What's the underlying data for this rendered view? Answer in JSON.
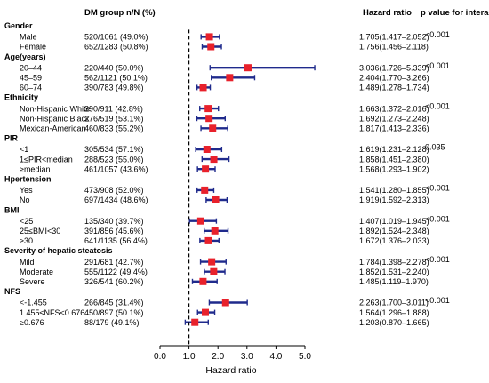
{
  "chart_data": {
    "type": "forest",
    "headers": {
      "group": "DM group n/N (%)",
      "hr": "Hazard ratio",
      "p": "p value for interaction"
    },
    "xlabel": "Hazard ratio",
    "xlim": [
      0.0,
      5.0
    ],
    "xticks": [
      "0.0",
      "1.0",
      "2.0",
      "3.0",
      "4.0",
      "5.0"
    ],
    "reference_line": 1.0,
    "colors": {
      "marker": "#e8212b",
      "ci": "#1f2a8c"
    },
    "groups": [
      {
        "name": "Gender",
        "p": "<0.001",
        "rows": [
          {
            "label": "Male",
            "n": "520/1061 (49.0%)",
            "hr": 1.705,
            "lo": 1.417,
            "hi": 2.052,
            "hr_text": "1.705(1.417–2.052)"
          },
          {
            "label": "Female",
            "n": "652/1283 (50.8%)",
            "hr": 1.756,
            "lo": 1.456,
            "hi": 2.118,
            "hr_text": "1.756(1.456–2.118)"
          }
        ]
      },
      {
        "name": "Age(years)",
        "p": "<0.001",
        "rows": [
          {
            "label": "20–44",
            "n": "220/440  (50.0%)",
            "hr": 3.036,
            "lo": 1.726,
            "hi": 5.339,
            "hr_text": "3.036(1.726–5.339)"
          },
          {
            "label": "45–59",
            "n": "562/1121 (50.1%)",
            "hr": 2.404,
            "lo": 1.77,
            "hi": 3.266,
            "hr_text": "2.404(1.770–3.266)"
          },
          {
            "label": "60–74",
            "n": "390/783  (49.8%)",
            "hr": 1.489,
            "lo": 1.278,
            "hi": 1.734,
            "hr_text": "1.489(1.278–1.734)"
          }
        ]
      },
      {
        "name": "Ethnicity",
        "p": "<0.001",
        "rows": [
          {
            "label": "Non-Hispanic White",
            "n": "390/911 (42.8%)",
            "hr": 1.663,
            "lo": 1.372,
            "hi": 2.016,
            "hr_text": "1.663(1.372–2.016)"
          },
          {
            "label": "Non-Hispanic Black",
            "n": "276/519 (53.1%)",
            "hr": 1.692,
            "lo": 1.273,
            "hi": 2.248,
            "hr_text": "1.692(1.273–2.248)"
          },
          {
            "label": "Mexican-American",
            "n": "460/833 (55.2%)",
            "hr": 1.817,
            "lo": 1.413,
            "hi": 2.336,
            "hr_text": "1.817(1.413–2.336)"
          }
        ]
      },
      {
        "name": "PIR",
        "p": "0.035",
        "rows": [
          {
            "label": "<1",
            "n": "305/534  (57.1%)",
            "hr": 1.619,
            "lo": 1.231,
            "hi": 2.128,
            "hr_text": "1.619(1.231–2.128)"
          },
          {
            "label": "1≤PIR<median",
            "n": "288/523  (55.0%)",
            "hr": 1.858,
            "lo": 1.451,
            "hi": 2.38,
            "hr_text": "1.858(1.451–2.380)"
          },
          {
            "label": "≥median",
            "n": "461/1057 (43.6%)",
            "hr": 1.568,
            "lo": 1.293,
            "hi": 1.902,
            "hr_text": "1.568(1.293–1.902)"
          }
        ]
      },
      {
        "name": "Hpertension",
        "p": "<0.001",
        "rows": [
          {
            "label": "Yes",
            "n": "473/908  (52.0%)",
            "hr": 1.541,
            "lo": 1.28,
            "hi": 1.855,
            "hr_text": "1.541(1.280–1.855)"
          },
          {
            "label": "No",
            "n": "697/1434 (48.6%)",
            "hr": 1.919,
            "lo": 1.592,
            "hi": 2.313,
            "hr_text": "1.919(1.592–2.313)"
          }
        ]
      },
      {
        "name": "BMI",
        "p": "<0.001",
        "rows": [
          {
            "label": "<25",
            "n": "135/340  (39.7%)",
            "hr": 1.407,
            "lo": 1.019,
            "hi": 1.945,
            "hr_text": "1.407(1.019–1.945)"
          },
          {
            "label": "25≤BMI<30",
            "n": "391/856  (45.6%)",
            "hr": 1.892,
            "lo": 1.524,
            "hi": 2.348,
            "hr_text": "1.892(1.524–2.348)"
          },
          {
            "label": "≥30",
            "n": "641/1135 (56.4%)",
            "hr": 1.672,
            "lo": 1.376,
            "hi": 2.033,
            "hr_text": "1.672(1.376–2.033)"
          }
        ]
      },
      {
        "name": "Severity of hepatic steatosis",
        "p": "<0.001",
        "rows": [
          {
            "label": "Mild",
            "n": "291/681  (42.7%)",
            "hr": 1.784,
            "lo": 1.398,
            "hi": 2.278,
            "hr_text": "1.784(1.398–2.278)"
          },
          {
            "label": "Moderate",
            "n": "555/1122 (49.4%)",
            "hr": 1.852,
            "lo": 1.531,
            "hi": 2.24,
            "hr_text": "1.852(1.531–2.240)"
          },
          {
            "label": "Severe",
            "n": "326/541  (60.2%)",
            "hr": 1.485,
            "lo": 1.119,
            "hi": 1.97,
            "hr_text": "1.485(1.119–1.970)"
          }
        ]
      },
      {
        "name": "NFS",
        "p": "<0.001",
        "rows": [
          {
            "label": "<-1.455",
            "n": "266/845 (31.4%)",
            "hr": 2.263,
            "lo": 1.7,
            "hi": 3.011,
            "hr_text": "2.263(1.700–3.011)"
          },
          {
            "label": "1.455≤NFS<0.676",
            "n": "450/897 (50.1%)",
            "hr": 1.564,
            "lo": 1.296,
            "hi": 1.888,
            "hr_text": "1.564(1.296–1.888)"
          },
          {
            "label": "≥0.676",
            "n": "88/179   (49.1%)",
            "hr": 1.203,
            "lo": 0.87,
            "hi": 1.665,
            "hr_text": "1.203(0.870–1.665)"
          }
        ]
      }
    ]
  }
}
